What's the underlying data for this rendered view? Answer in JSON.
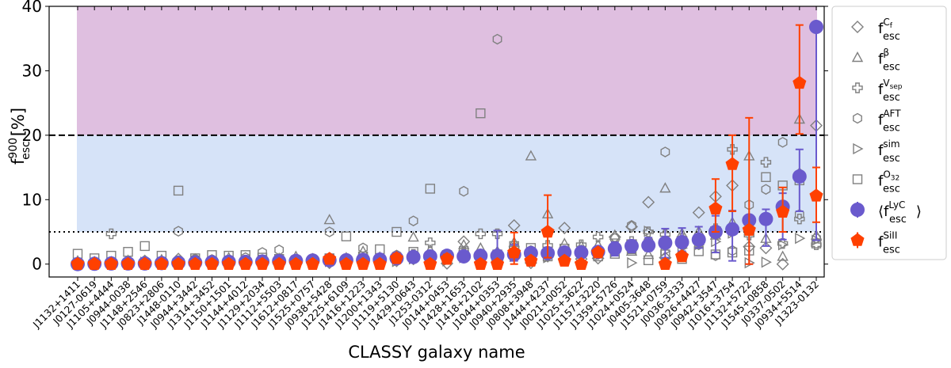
{
  "chart_data": {
    "type": "scatter",
    "xlabel": "CLASSY galaxy name",
    "ylabel_main": "f",
    "ylabel_sup": "900",
    "ylabel_sub": "esc",
    "ylabel_unit": "[%]",
    "ylim": [
      -2,
      40
    ],
    "yticks": [
      0,
      10,
      20,
      30,
      40
    ],
    "grid": false,
    "legend_placement": "outside-right",
    "regions": [
      {
        "from": 20,
        "to": 40,
        "color": "#dfbfe0"
      },
      {
        "from": 5,
        "to": 20,
        "color": "#d6e3f8"
      }
    ],
    "hlines": [
      {
        "y": 20,
        "style": "dashed"
      },
      {
        "y": 5,
        "style": "dotted"
      }
    ],
    "categories": [
      "J1132+1411",
      "J0127-0619",
      "J1105+4444",
      "J0944-0038",
      "J1148+2546",
      "J0823+2806",
      "J1448-0110",
      "J0944+3442",
      "J1314+3452",
      "J1150+1501",
      "J1144+4012",
      "J1129+2034",
      "J1112+5503",
      "J1612+0817",
      "J1525+0757",
      "J0938+5428",
      "J1225+6109",
      "J1416+1223",
      "J1200+1343",
      "J1119+5130",
      "J1429+0643",
      "J1253-0312",
      "J0144+0453",
      "J1428+1653",
      "J1418+2102",
      "J1044+0353",
      "J0940+2935",
      "J0808+3948",
      "J1444+4237",
      "J0021+0052",
      "J1025+3622",
      "J1157+3220",
      "J1359+5726",
      "J1024+0524",
      "J0405-3648",
      "J1521+0759",
      "J0036-3333",
      "J0926+4427",
      "J0942+3547",
      "J1016+3754",
      "J1132+5722",
      "J1545+0858",
      "J0337-0502",
      "J0934+5514",
      "J1323-0132"
    ],
    "series": [
      {
        "key": "cf",
        "name_main": "f",
        "name_sup": "C",
        "name_supsub": "f",
        "name_sub": "esc",
        "marker": "diamond",
        "color": "#808080",
        "values": [
          0.2,
          0.1,
          0.3,
          0.2,
          0.5,
          0.3,
          0.8,
          0.5,
          0.6,
          0.4,
          0.3,
          0.5,
          0.7,
          0.1,
          0.4,
          0.2,
          0.6,
          0.1,
          0.3,
          0.5,
          0.8,
          0.9,
          0.1,
          3.5,
          1.0,
          0.6,
          6.0,
          0.2,
          1.2,
          5.6,
          0.8,
          0.9,
          4.2,
          5.8,
          9.6,
          1.0,
          3.0,
          8.0,
          10.5,
          12.2,
          2.7,
          2.5,
          0.0,
          14.0,
          21.5
        ]
      },
      {
        "key": "beta",
        "name_main": "f",
        "name_sup": "β",
        "name_supsub": "",
        "name_sub": "esc",
        "marker": "triangle",
        "color": "#808080",
        "values": [
          0.5,
          0.4,
          0.3,
          0.6,
          0.4,
          0.7,
          0.5,
          0.8,
          0.6,
          1.0,
          0.5,
          0.7,
          0.9,
          1.2,
          0.8,
          6.9,
          1.0,
          2.0,
          1.1,
          1.3,
          4.2,
          2.2,
          1.5,
          3.0,
          2.5,
          2.0,
          3.4,
          16.8,
          7.8,
          3.2,
          2.8,
          3.0,
          4.5,
          2.0,
          1.5,
          11.8,
          4.8,
          5.1,
          4.5,
          6.5,
          16.8,
          4.0,
          1.2,
          22.5,
          4.5
        ]
      },
      {
        "key": "vsep",
        "name_main": "f",
        "name_sup": "V",
        "name_supsub": "sep",
        "name_sub": "esc",
        "marker": "plus",
        "color": "#808080",
        "values": [
          0.1,
          0.2,
          4.7,
          0.3,
          0.4,
          0.2,
          0.5,
          0.3,
          0.6,
          0.4,
          0.5,
          0.3,
          0.6,
          0.5,
          0.7,
          0.4,
          0.8,
          0.6,
          0.9,
          0.7,
          1.5,
          3.3,
          1.2,
          1.8,
          4.7,
          4.7,
          2.5,
          2.0,
          2.9,
          1.5,
          3.0,
          4.2,
          2.8,
          3.5,
          5.0,
          4.6,
          4.0,
          3.5,
          5.5,
          17.8,
          4.5,
          15.8,
          3.2,
          7.0,
          3.0
        ]
      },
      {
        "key": "aft",
        "name_main": "f",
        "name_sup": "AFT",
        "name_supsub": "",
        "name_sub": "esc",
        "marker": "hexagon",
        "color": "#808080",
        "values": [
          0.3,
          0.2,
          0.4,
          0.3,
          0.5,
          0.4,
          5.1,
          0.8,
          0.6,
          0.5,
          1.0,
          1.8,
          2.2,
          0.6,
          0.9,
          5.0,
          0.8,
          2.5,
          0.6,
          1.4,
          6.7,
          1.0,
          1.3,
          11.3,
          1.6,
          34.9,
          1.5,
          2.1,
          1.8,
          2.0,
          2.2,
          1.5,
          4.0,
          6.0,
          3.5,
          17.4,
          1.5,
          3.0,
          1.3,
          2.1,
          9.2,
          11.6,
          18.9,
          7.7,
          4.0
        ]
      },
      {
        "key": "sim",
        "name_main": "f",
        "name_sup": "sim",
        "name_supsub": "",
        "name_sub": "esc",
        "marker": "tri-right",
        "color": "#808080",
        "values": [
          0.1,
          0.0,
          0.2,
          0.1,
          0.3,
          0.2,
          0.1,
          0.3,
          0.2,
          0.4,
          0.3,
          0.2,
          0.5,
          0.3,
          0.2,
          0.4,
          0.5,
          0.3,
          0.6,
          0.4,
          0.8,
          0.7,
          0.5,
          1.0,
          0.9,
          1.0,
          1.2,
          1.5,
          1.0,
          1.4,
          1.6,
          1.3,
          1.9,
          0.2,
          5.1,
          2.0,
          2.5,
          3.0,
          3.5,
          4.8,
          0.2,
          0.3,
          3.0,
          4.0,
          3.7
        ]
      },
      {
        "key": "o32",
        "name_main": "f",
        "name_sup": "O",
        "name_supsub": "32",
        "name_sub": "esc",
        "marker": "square",
        "color": "#808080",
        "values": [
          1.6,
          0.9,
          1.3,
          1.9,
          2.8,
          1.3,
          11.4,
          0.9,
          1.4,
          1.3,
          1.4,
          1.0,
          0.8,
          0.6,
          0.5,
          0.9,
          4.3,
          1.2,
          2.3,
          5.0,
          1.9,
          11.7,
          1.4,
          2.0,
          23.4,
          1.5,
          2.8,
          2.5,
          1.2,
          2.4,
          2.0,
          1.2,
          1.6,
          2.3,
          0.6,
          1.5,
          0.8,
          2.0,
          1.5,
          1.8,
          2.1,
          13.5,
          12.2,
          13.0,
          3.2
        ]
      },
      {
        "key": "lyc",
        "name_main": "⟨f",
        "name_sup": "LyC",
        "name_supsub": "",
        "name_sub": "esc",
        "name_close": "⟩",
        "marker": "circle",
        "color": "#6a5acd",
        "values": [
          0.0,
          0.05,
          0.1,
          0.1,
          0.1,
          0.15,
          0.2,
          0.25,
          0.3,
          0.35,
          0.35,
          0.4,
          0.45,
          0.5,
          0.55,
          0.6,
          0.6,
          0.65,
          0.7,
          0.9,
          1.1,
          1.2,
          1.3,
          1.2,
          1.3,
          1.3,
          1.5,
          1.7,
          1.7,
          1.8,
          1.8,
          1.9,
          2.4,
          2.8,
          2.9,
          3.3,
          3.4,
          3.8,
          5.0,
          5.4,
          6.8,
          7.0,
          8.9,
          13.6,
          36.8
        ],
        "errors": {
          "19": [
            0.5,
            1.4
          ],
          "21": [
            0.8,
            1.8
          ],
          "22": [
            0.8,
            1.9
          ],
          "24": [
            0.9,
            2.0
          ],
          "25": [
            0.0,
            5.2
          ],
          "26": [
            0.5,
            3.0
          ],
          "28": [
            0.9,
            2.5
          ],
          "29": [
            1.0,
            2.6
          ],
          "31": [
            1.0,
            2.6
          ],
          "32": [
            1.3,
            3.4
          ],
          "33": [
            1.8,
            3.7
          ],
          "34": [
            2.0,
            4.1
          ],
          "35": [
            1.0,
            5.5
          ],
          "36": [
            2.0,
            5.6
          ],
          "37": [
            2.5,
            5.8
          ],
          "38": [
            1.8,
            7.5
          ],
          "39": [
            0.5,
            8.3
          ],
          "40": [
            0.0,
            7.0
          ],
          "41": [
            2.8,
            8.5
          ],
          "42": [
            3.8,
            11.0
          ],
          "43": [
            8.2,
            17.8
          ],
          "44": [
            3.7,
            36.8
          ]
        }
      },
      {
        "key": "siII",
        "name_main": "f",
        "name_sup": "SiII",
        "name_supsub": "",
        "name_sub": "esc",
        "marker": "pentagon",
        "color": "#ff4000",
        "values": [
          0,
          0,
          0,
          0,
          0,
          0,
          0,
          0,
          0,
          0,
          0,
          0,
          0,
          0,
          0,
          0.8,
          0,
          0,
          0,
          0.9,
          null,
          0,
          0.8,
          null,
          0,
          0,
          1.8,
          0.5,
          5.0,
          0.5,
          0,
          1.8,
          null,
          null,
          null,
          0,
          1.2,
          null,
          8.6,
          15.5,
          5.3,
          null,
          8.1,
          28.1,
          10.6
        ],
        "errors": {
          "15": [
            0.3,
            1.4
          ],
          "19": [
            0.4,
            1.6
          ],
          "22": [
            0.3,
            1.5
          ],
          "26": [
            0.0,
            4.9
          ],
          "28": [
            1.0,
            10.7
          ],
          "31": [
            1.2,
            2.3
          ],
          "38": [
            5.0,
            13.2
          ],
          "39": [
            8.2,
            20.0
          ],
          "40": [
            0.0,
            22.7
          ],
          "42": [
            5.0,
            11.9
          ],
          "43": [
            20.2,
            37.1
          ],
          "44": [
            6.5,
            15.0
          ]
        }
      }
    ]
  }
}
